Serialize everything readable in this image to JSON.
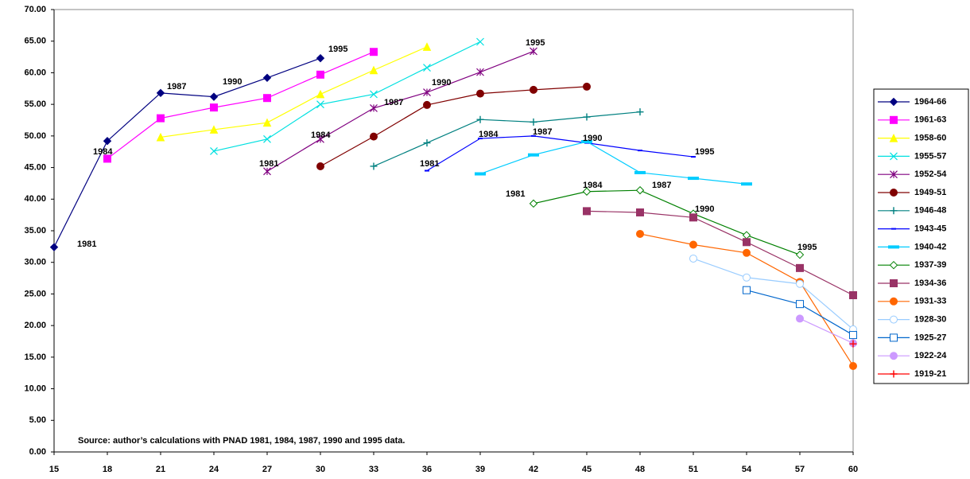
{
  "chart_data": {
    "type": "line",
    "note": "Source: author’s calculations with PNAD 1981, 1984, 1987, 1990 and 1995 data.",
    "xlim": [
      15,
      60
    ],
    "xticks": [
      15,
      18,
      21,
      24,
      27,
      30,
      33,
      36,
      39,
      42,
      45,
      48,
      51,
      54,
      57,
      60
    ],
    "ylim": [
      0,
      70
    ],
    "yticks": [
      {
        "value": 0,
        "label": "0.00"
      },
      {
        "value": 5,
        "label": "5.00"
      },
      {
        "value": 10,
        "label": "10.00"
      },
      {
        "value": 15,
        "label": "15.00"
      },
      {
        "value": 20,
        "label": "20.00"
      },
      {
        "value": 25,
        "label": "25.00"
      },
      {
        "value": 30,
        "label": "30.00"
      },
      {
        "value": 35,
        "label": "35.00"
      },
      {
        "value": 40,
        "label": "40.00"
      },
      {
        "value": 45,
        "label": "45.00"
      },
      {
        "value": 50,
        "label": "50.00"
      },
      {
        "value": 55,
        "label": "55.00"
      },
      {
        "value": 60,
        "label": "60.00"
      },
      {
        "value": 65,
        "label": "65.00"
      },
      {
        "value": 70,
        "label": "70.00"
      }
    ],
    "legend": "right",
    "series": [
      {
        "name": "1964-66",
        "color": "#000080",
        "marker": "diamond",
        "x": [
          15,
          18,
          21,
          24,
          27,
          30
        ],
        "values": [
          32.4,
          49.2,
          56.8,
          56.2,
          59.2,
          62.3
        ]
      },
      {
        "name": "1961-63",
        "color": "#ff00ff",
        "marker": "square",
        "x": [
          18,
          21,
          24,
          27,
          30,
          33
        ],
        "values": [
          46.4,
          52.8,
          54.5,
          56.0,
          59.7,
          63.3
        ]
      },
      {
        "name": "1958-60",
        "color": "#ffff00",
        "marker": "triangle",
        "x": [
          21,
          24,
          27,
          30,
          33,
          36
        ],
        "values": [
          49.8,
          51.0,
          52.1,
          56.6,
          60.4,
          64.1
        ]
      },
      {
        "name": "1955-57",
        "color": "#00e0e0",
        "marker": "x",
        "x": [
          24,
          27,
          30,
          33,
          36,
          39
        ],
        "values": [
          47.6,
          49.5,
          55.0,
          56.6,
          60.8,
          64.9
        ]
      },
      {
        "name": "1952-54",
        "color": "#800080",
        "marker": "star",
        "x": [
          27,
          30,
          33,
          36,
          39,
          42
        ],
        "values": [
          44.4,
          49.5,
          54.4,
          56.9,
          60.1,
          63.4
        ]
      },
      {
        "name": "1949-51",
        "color": "#800000",
        "marker": "circle",
        "x": [
          30,
          33,
          36,
          39,
          42,
          45
        ],
        "values": [
          45.2,
          49.9,
          54.9,
          56.7,
          57.3,
          57.8
        ]
      },
      {
        "name": "1946-48",
        "color": "#008080",
        "marker": "plus",
        "x": [
          33,
          36,
          39,
          42,
          45,
          48
        ],
        "values": [
          45.2,
          48.9,
          52.6,
          52.2,
          53.0,
          53.8
        ]
      },
      {
        "name": "1943-45",
        "color": "#0000ff",
        "marker": "dash",
        "x": [
          36,
          39,
          42,
          45,
          48,
          51
        ],
        "values": [
          44.5,
          49.6,
          50.0,
          48.9,
          47.7,
          46.7
        ]
      },
      {
        "name": "1940-42",
        "color": "#00ccff",
        "marker": "thick-dash",
        "x": [
          39,
          42,
          45,
          48,
          51,
          54
        ],
        "values": [
          44.0,
          47.0,
          49.1,
          44.2,
          43.3,
          42.4
        ]
      },
      {
        "name": "1937-39",
        "color": "#008000",
        "marker": "diamond-open",
        "x": [
          42,
          45,
          48,
          51,
          54,
          57
        ],
        "values": [
          39.3,
          41.2,
          41.4,
          37.7,
          34.3,
          31.2
        ]
      },
      {
        "name": "1934-36",
        "color": "#993366",
        "marker": "square",
        "x": [
          45,
          48,
          51,
          54,
          57,
          60
        ],
        "values": [
          38.1,
          37.9,
          37.1,
          33.2,
          29.1,
          24.8
        ]
      },
      {
        "name": "1931-33",
        "color": "#ff6600",
        "marker": "circle",
        "x": [
          48,
          51,
          54,
          57,
          60
        ],
        "values": [
          34.5,
          32.8,
          31.5,
          26.9,
          13.6
        ]
      },
      {
        "name": "1928-30",
        "color": "#99ccff",
        "marker": "circle-open",
        "x": [
          51,
          54,
          57,
          60
        ],
        "values": [
          30.6,
          27.6,
          26.6,
          19.4
        ]
      },
      {
        "name": "1925-27",
        "color": "#0066cc",
        "marker": "square-open",
        "x": [
          54,
          57,
          60
        ],
        "values": [
          25.6,
          23.4,
          18.5
        ]
      },
      {
        "name": "1922-24",
        "color": "#cc99ff",
        "marker": "circle",
        "x": [
          57,
          60
        ],
        "values": [
          21.1,
          17.2
        ]
      },
      {
        "name": "1919-21",
        "color": "#ff0000",
        "marker": "plus",
        "x": [
          60
        ],
        "values": [
          17.1
        ]
      }
    ],
    "annotations": [
      "1981",
      "1984",
      "1987",
      "1990",
      "1995",
      "1995",
      "1990",
      "1987",
      "1984",
      "1981",
      "1981",
      "1984",
      "1987",
      "1990",
      "1995",
      "1981",
      "1984",
      "1987",
      "1990",
      "1995"
    ]
  }
}
